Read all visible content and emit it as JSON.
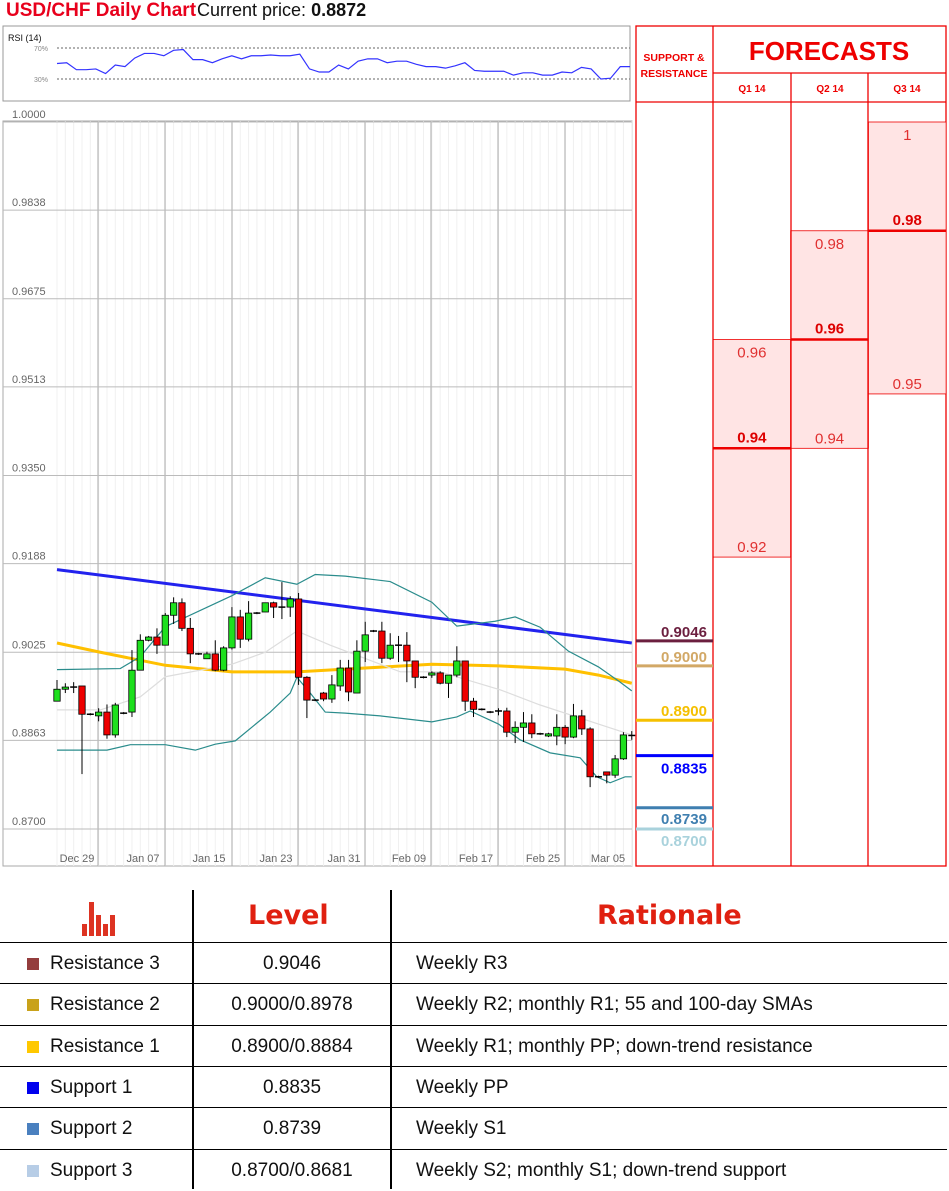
{
  "header": {
    "title": "USD/CHF Daily Chart",
    "current_price_label": "Current price:",
    "current_price": "0.8872"
  },
  "forecast_panel": {
    "sr_header": [
      "SUPPORT &",
      "RESISTANCE"
    ],
    "title": "FORECASTS",
    "quarters": [
      {
        "label": "Q1 14",
        "high": 0.96,
        "median": 0.94,
        "low": 0.92,
        "high_label": "0.96",
        "median_label": "0.94",
        "low_label": "0.92"
      },
      {
        "label": "Q2 14",
        "high": 0.98,
        "median": 0.96,
        "low": 0.94,
        "high_label": "0.98",
        "median_label": "0.96",
        "low_label": "0.94"
      },
      {
        "label": "Q3 14",
        "high": 1.0,
        "median": 0.98,
        "low": 0.95,
        "high_label": "1",
        "median_label": "0.98",
        "low_label": "0.95"
      }
    ],
    "levels": [
      {
        "label": "0.9046",
        "value": 0.9046,
        "color": "#6b1f3f"
      },
      {
        "label": "0.9000",
        "value": 0.9,
        "color": "#d2a866"
      },
      {
        "label": "0.8900",
        "value": 0.89,
        "color": "#f5c000"
      },
      {
        "label": "0.8835",
        "value": 0.8835,
        "color": "#0000ff"
      },
      {
        "label": "0.8739",
        "value": 0.8739,
        "color": "#3f7fb0"
      },
      {
        "label": "0.8700",
        "value": 0.87,
        "color": "#a9d2dc"
      }
    ]
  },
  "table": {
    "headers": {
      "level": "Level",
      "rationale": "Rationale"
    },
    "rows": [
      {
        "name": "Resistance 3",
        "level": "0.9046",
        "rationale": "Weekly R3",
        "color": "#943d3d"
      },
      {
        "name": "Resistance 2",
        "level": "0.9000/0.8978",
        "rationale": "Weekly R2; monthly R1; 55 and 100-day SMAs",
        "color": "#c9a21a"
      },
      {
        "name": "Resistance 1",
        "level": "0.8900/0.8884",
        "rationale": "Weekly R1; monthly PP; down-trend resistance",
        "color": "#ffc800"
      },
      {
        "name": "Support 1",
        "level": "0.8835",
        "rationale": "Weekly PP",
        "color": "#0000ee"
      },
      {
        "name": "Support 2",
        "level": "0.8739",
        "rationale": "Weekly S1",
        "color": "#4a80bf"
      },
      {
        "name": "Support 3",
        "level": "0.8700/0.8681",
        "rationale": "Weekly S2; monthly S1; down-trend support",
        "color": "#b7cde6"
      }
    ]
  },
  "chart_data": [
    {
      "type": "line",
      "title": "RSI (14)",
      "ytick_labels": [
        "70%",
        "30%"
      ],
      "ylim": [
        0,
        100
      ],
      "values": [
        50,
        51,
        42,
        42,
        43,
        37,
        48,
        46,
        57,
        63,
        63,
        60,
        67,
        68,
        55,
        55,
        51,
        56,
        60,
        56,
        60,
        60,
        61,
        60,
        60,
        62,
        43,
        39,
        39,
        48,
        43,
        53,
        56,
        56,
        51,
        53,
        53,
        49,
        46,
        46,
        44,
        47,
        51,
        41,
        40,
        40,
        40,
        35,
        38,
        38,
        35,
        35,
        39,
        38,
        45,
        43,
        30,
        31,
        46,
        46
      ],
      "color": "#3333ff"
    },
    {
      "type": "candlestick",
      "title": "USD/CHF Daily Chart",
      "ylim": [
        0.87,
        1.0
      ],
      "ytick_labels": [
        "1.0000",
        "0.9838",
        "0.9675",
        "0.9513",
        "0.9350",
        "0.9188",
        "0.9025",
        "0.8863",
        "0.8700"
      ],
      "xtick_labels": [
        "Dec 29",
        "Jan 07",
        "Jan 15",
        "Jan 23",
        "Jan 31",
        "Feb 09",
        "Feb 17",
        "Feb 25",
        "Mar 05"
      ],
      "grid": true,
      "ohlc": [
        [
          0.8935,
          0.8974,
          0.8935,
          0.8957
        ],
        [
          0.8957,
          0.8968,
          0.895,
          0.8961
        ],
        [
          0.8961,
          0.897,
          0.895,
          0.8961
        ],
        [
          0.8963,
          0.8963,
          0.8801,
          0.8911
        ],
        [
          0.8911,
          0.8913,
          0.8909,
          0.8911
        ],
        [
          0.8908,
          0.8922,
          0.8898,
          0.8915
        ],
        [
          0.8915,
          0.8929,
          0.8866,
          0.8873
        ],
        [
          0.8873,
          0.8932,
          0.8868,
          0.8928
        ],
        [
          0.8913,
          0.8915,
          0.8911,
          0.8913
        ],
        [
          0.8915,
          0.9029,
          0.8906,
          0.8992
        ],
        [
          0.8992,
          0.9058,
          0.8992,
          0.9047
        ],
        [
          0.9047,
          0.9055,
          0.9045,
          0.9053
        ],
        [
          0.9053,
          0.9069,
          0.9022,
          0.9038
        ],
        [
          0.9038,
          0.9097,
          0.9038,
          0.9093
        ],
        [
          0.9093,
          0.9126,
          0.9077,
          0.9116
        ],
        [
          0.9116,
          0.9124,
          0.9064,
          0.9069
        ],
        [
          0.9069,
          0.9088,
          0.9005,
          0.9022
        ],
        [
          0.9022,
          0.9024,
          0.902,
          0.9022
        ],
        [
          0.9013,
          0.9026,
          0.9013,
          0.9022
        ],
        [
          0.9022,
          0.9047,
          0.899,
          0.8992
        ],
        [
          0.8992,
          0.9036,
          0.899,
          0.9033
        ],
        [
          0.9033,
          0.9108,
          0.903,
          0.909
        ],
        [
          0.909,
          0.9103,
          0.9033,
          0.9049
        ],
        [
          0.9049,
          0.9119,
          0.9045,
          0.9097
        ],
        [
          0.9097,
          0.9099,
          0.9095,
          0.9097
        ],
        [
          0.9099,
          0.9116,
          0.9099,
          0.9116
        ],
        [
          0.9116,
          0.9118,
          0.9088,
          0.9108
        ],
        [
          0.9108,
          0.9154,
          0.9086,
          0.9108
        ],
        [
          0.9108,
          0.9128,
          0.909,
          0.9123
        ],
        [
          0.9123,
          0.9134,
          0.8965,
          0.8979
        ],
        [
          0.8979,
          0.8981,
          0.8904,
          0.8937
        ],
        [
          0.8937,
          0.8939,
          0.8935,
          0.8937
        ],
        [
          0.895,
          0.8952,
          0.8935,
          0.8939
        ],
        [
          0.8939,
          0.8983,
          0.8932,
          0.8965
        ],
        [
          0.8963,
          0.9011,
          0.8954,
          0.8996
        ],
        [
          0.8996,
          0.9011,
          0.8935,
          0.8952
        ],
        [
          0.895,
          0.9047,
          0.895,
          0.9027
        ],
        [
          0.9027,
          0.9081,
          0.9007,
          0.9057
        ],
        [
          0.9064,
          0.9066,
          0.9062,
          0.9064
        ],
        [
          0.9064,
          0.9081,
          0.9005,
          0.9014
        ],
        [
          0.9014,
          0.906,
          0.9011,
          0.9038
        ],
        [
          0.9038,
          0.9055,
          0.9007,
          0.9038
        ],
        [
          0.9038,
          0.9062,
          0.897,
          0.9009
        ],
        [
          0.9009,
          0.9009,
          0.8959,
          0.8979
        ],
        [
          0.8979,
          0.8981,
          0.8977,
          0.8979
        ],
        [
          0.8983,
          0.899,
          0.8978,
          0.8987
        ],
        [
          0.8987,
          0.899,
          0.8966,
          0.8968
        ],
        [
          0.8968,
          0.8983,
          0.8941,
          0.8983
        ],
        [
          0.8983,
          0.9036,
          0.8979,
          0.9009
        ],
        [
          0.9009,
          0.9009,
          0.8917,
          0.8935
        ],
        [
          0.8935,
          0.8941,
          0.8906,
          0.892
        ],
        [
          0.892,
          0.8922,
          0.8918,
          0.892
        ],
        [
          0.8915,
          0.8917,
          0.8913,
          0.8915
        ],
        [
          0.8915,
          0.8922,
          0.8909,
          0.8917
        ],
        [
          0.8917,
          0.8923,
          0.8869,
          0.8878
        ],
        [
          0.8878,
          0.8898,
          0.8858,
          0.8887
        ],
        [
          0.8887,
          0.8915,
          0.886,
          0.8895
        ],
        [
          0.8895,
          0.8911,
          0.8867,
          0.8875
        ],
        [
          0.8875,
          0.8877,
          0.8873,
          0.8875
        ],
        [
          0.8871,
          0.8877,
          0.8869,
          0.8875
        ],
        [
          0.8871,
          0.8911,
          0.8854,
          0.8887
        ],
        [
          0.8887,
          0.8891,
          0.8856,
          0.8869
        ],
        [
          0.8869,
          0.893,
          0.8867,
          0.8908
        ],
        [
          0.8908,
          0.8919,
          0.8873,
          0.8884
        ],
        [
          0.8884,
          0.8887,
          0.8777,
          0.8796
        ],
        [
          0.8796,
          0.8798,
          0.8794,
          0.8796
        ],
        [
          0.8805,
          0.8805,
          0.8784,
          0.8799
        ],
        [
          0.8799,
          0.8836,
          0.8794,
          0.8829
        ],
        [
          0.8829,
          0.8878,
          0.8827,
          0.8873
        ],
        [
          0.8871,
          0.888,
          0.8864,
          0.8872
        ]
      ],
      "overlays": [
        {
          "color": "#2222ee",
          "points": [
            [
              0,
              0.9177
            ],
            [
              69,
              0.9042
            ]
          ]
        },
        {
          "color": "#ffc000",
          "points": [
            [
              0,
              0.9042
            ],
            [
              5.2,
              0.9025
            ],
            [
              13,
              0.9001
            ],
            [
              21,
              0.8989
            ],
            [
              28.8,
              0.8989
            ],
            [
              37,
              0.8996
            ],
            [
              45,
              0.9003
            ],
            [
              53,
              0.9
            ],
            [
              61,
              0.8994
            ],
            [
              65,
              0.8983
            ],
            [
              69,
              0.8968
            ]
          ]
        },
        {
          "color": "#2a8c8c",
          "points": [
            [
              0,
              0.8993
            ],
            [
              7.6,
              0.8995
            ],
            [
              10,
              0.9017
            ],
            [
              13,
              0.9072
            ],
            [
              21,
              0.9129
            ],
            [
              25,
              0.9162
            ],
            [
              28.8,
              0.915
            ],
            [
              31,
              0.9168
            ],
            [
              34.6,
              0.9165
            ],
            [
              40,
              0.9155
            ],
            [
              45,
              0.9117
            ],
            [
              48,
              0.9073
            ],
            [
              52.6,
              0.9082
            ],
            [
              55,
              0.909
            ],
            [
              58,
              0.9071
            ],
            [
              61.4,
              0.9027
            ],
            [
              65,
              0.8998
            ],
            [
              67.6,
              0.897
            ],
            [
              69,
              0.8954
            ]
          ]
        },
        {
          "color": "#2a8c8c",
          "points": [
            [
              0,
              0.8845
            ],
            [
              6,
              0.8845
            ],
            [
              8.8,
              0.8855
            ],
            [
              13,
              0.8855
            ],
            [
              16.6,
              0.8845
            ],
            [
              19,
              0.8856
            ],
            [
              21.4,
              0.8862
            ],
            [
              25.6,
              0.8915
            ],
            [
              28,
              0.895
            ],
            [
              28.8,
              0.8979
            ],
            [
              30.4,
              0.895
            ],
            [
              32.2,
              0.8915
            ],
            [
              34.6,
              0.8913
            ],
            [
              38.8,
              0.8908
            ],
            [
              45,
              0.8897
            ],
            [
              48,
              0.8906
            ],
            [
              49.6,
              0.8917
            ],
            [
              53,
              0.8893
            ],
            [
              55.6,
              0.8864
            ],
            [
              59.2,
              0.884
            ],
            [
              62.8,
              0.8831
            ],
            [
              64.8,
              0.8796
            ],
            [
              66.4,
              0.8785
            ],
            [
              68.2,
              0.8796
            ],
            [
              69,
              0.8796
            ]
          ]
        },
        {
          "color": "#dddddd",
          "points": [
            [
              0,
              0.8919
            ],
            [
              5.2,
              0.8919
            ],
            [
              10,
              0.8943
            ],
            [
              13,
              0.898
            ],
            [
              21,
              0.9003
            ],
            [
              25,
              0.9025
            ],
            [
              28.8,
              0.9064
            ],
            [
              32.8,
              0.9038
            ],
            [
              41.2,
              0.8989
            ],
            [
              46,
              0.8989
            ],
            [
              53.2,
              0.8956
            ],
            [
              58,
              0.8928
            ],
            [
              62.8,
              0.8904
            ],
            [
              69,
              0.8873
            ]
          ]
        }
      ]
    }
  ]
}
